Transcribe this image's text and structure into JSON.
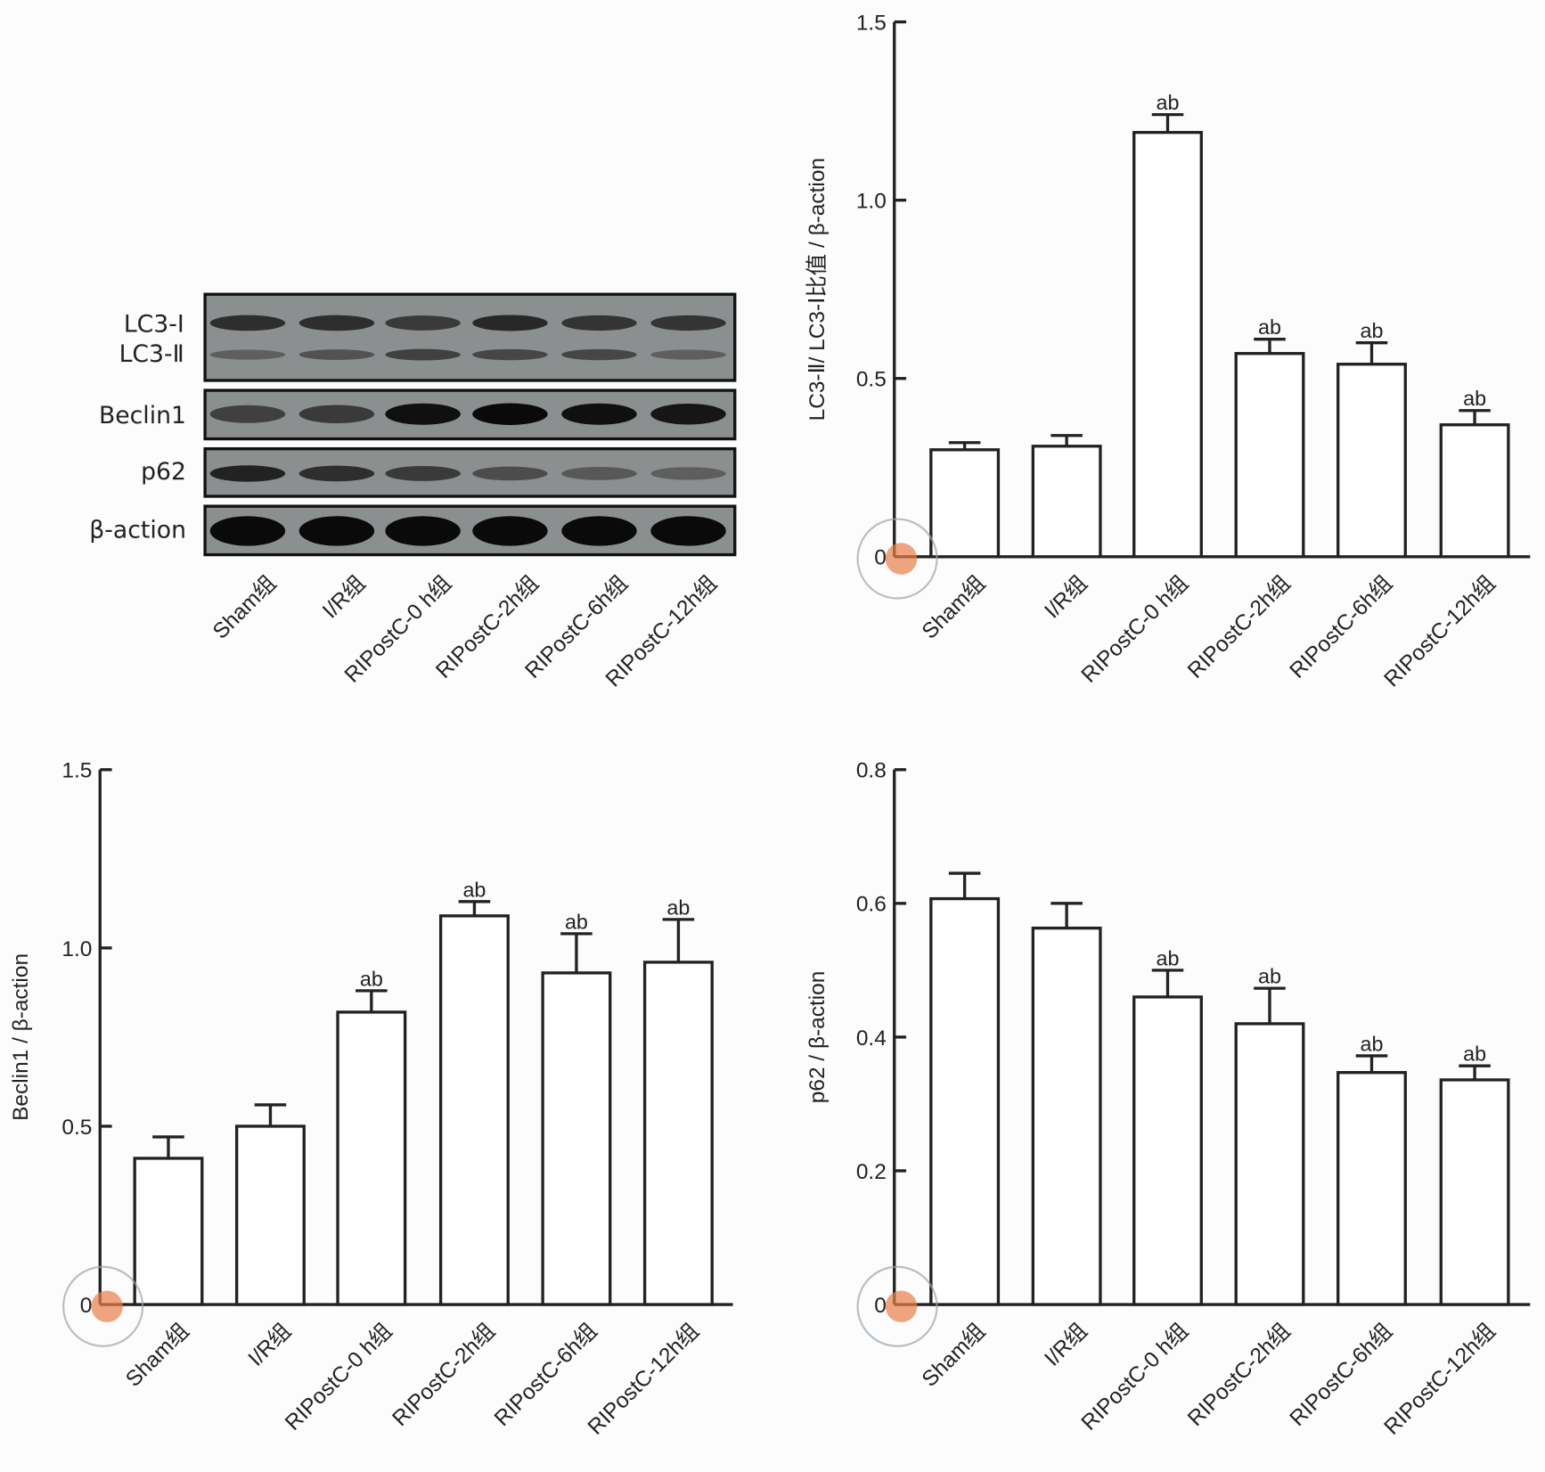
{
  "categories": [
    "Sham组",
    "I/R组",
    "RIPostC-0 h组",
    "RIPostC-2h组",
    "RIPostC-6h组",
    "RIPostC-12h组"
  ],
  "blot": {
    "row_labels": [
      "LC3-Ⅰ",
      "LC3-Ⅱ",
      "Beclin1",
      "p62",
      "β-action"
    ],
    "band_intensity": {
      "LC3-I": [
        0.7,
        0.7,
        0.6,
        0.75,
        0.65,
        0.65
      ],
      "LC3-II": [
        0.3,
        0.4,
        0.55,
        0.5,
        0.5,
        0.3
      ],
      "Beclin1": [
        0.55,
        0.6,
        0.95,
        1.0,
        0.95,
        0.9
      ],
      "p62": [
        0.8,
        0.7,
        0.6,
        0.45,
        0.35,
        0.3
      ],
      "beta-action": [
        1,
        1,
        1,
        1,
        1,
        1
      ]
    }
  },
  "chart_data": [
    {
      "type": "bar",
      "ylabel": "LC3-Ⅱ/ LC3-Ⅰ比值 / β-action",
      "ylim": [
        0,
        1.5
      ],
      "yticks": [
        "0",
        "0.5",
        "1.0",
        "1.5"
      ],
      "ytick_values": [
        0,
        0.5,
        1.0,
        1.5
      ],
      "categories": [
        "Sham组",
        "I/R组",
        "RIPostC-0 h组",
        "RIPostC-2h组",
        "RIPostC-6h组",
        "RIPostC-12h组"
      ],
      "values": [
        0.3,
        0.31,
        1.19,
        0.57,
        0.54,
        0.37
      ],
      "error": [
        0.02,
        0.03,
        0.05,
        0.04,
        0.06,
        0.04
      ],
      "annotations": [
        "",
        "",
        "ab",
        "ab",
        "ab",
        "ab"
      ]
    },
    {
      "type": "bar",
      "ylabel": "Beclin1 / β-action",
      "ylim": [
        0,
        1.5
      ],
      "yticks": [
        "0",
        "0.5",
        "1.0",
        "1.5"
      ],
      "ytick_values": [
        0,
        0.5,
        1.0,
        1.5
      ],
      "categories": [
        "Sham组",
        "I/R组",
        "RIPostC-0 h组",
        "RIPostC-2h组",
        "RIPostC-6h组",
        "RIPostC-12h组"
      ],
      "values": [
        0.41,
        0.5,
        0.82,
        1.09,
        0.93,
        0.96
      ],
      "error": [
        0.06,
        0.06,
        0.06,
        0.04,
        0.11,
        0.12
      ],
      "annotations": [
        "",
        "",
        "ab",
        "ab",
        "ab",
        "ab"
      ]
    },
    {
      "type": "bar",
      "ylabel": "p62 / β-action",
      "ylim": [
        0,
        0.8
      ],
      "yticks": [
        "0",
        "0.2",
        "0.4",
        "0.6",
        "0.8"
      ],
      "ytick_values": [
        0,
        0.2,
        0.4,
        0.6,
        0.8
      ],
      "categories": [
        "Sham组",
        "I/R组",
        "RIPostC-0 h组",
        "RIPostC-2h组",
        "RIPostC-6h组",
        "RIPostC-12h组"
      ],
      "values": [
        0.607,
        0.563,
        0.46,
        0.42,
        0.347,
        0.336
      ],
      "error": [
        0.038,
        0.037,
        0.04,
        0.053,
        0.025,
        0.021
      ],
      "annotations": [
        "",
        "",
        "ab",
        "ab",
        "ab",
        "ab"
      ]
    }
  ]
}
